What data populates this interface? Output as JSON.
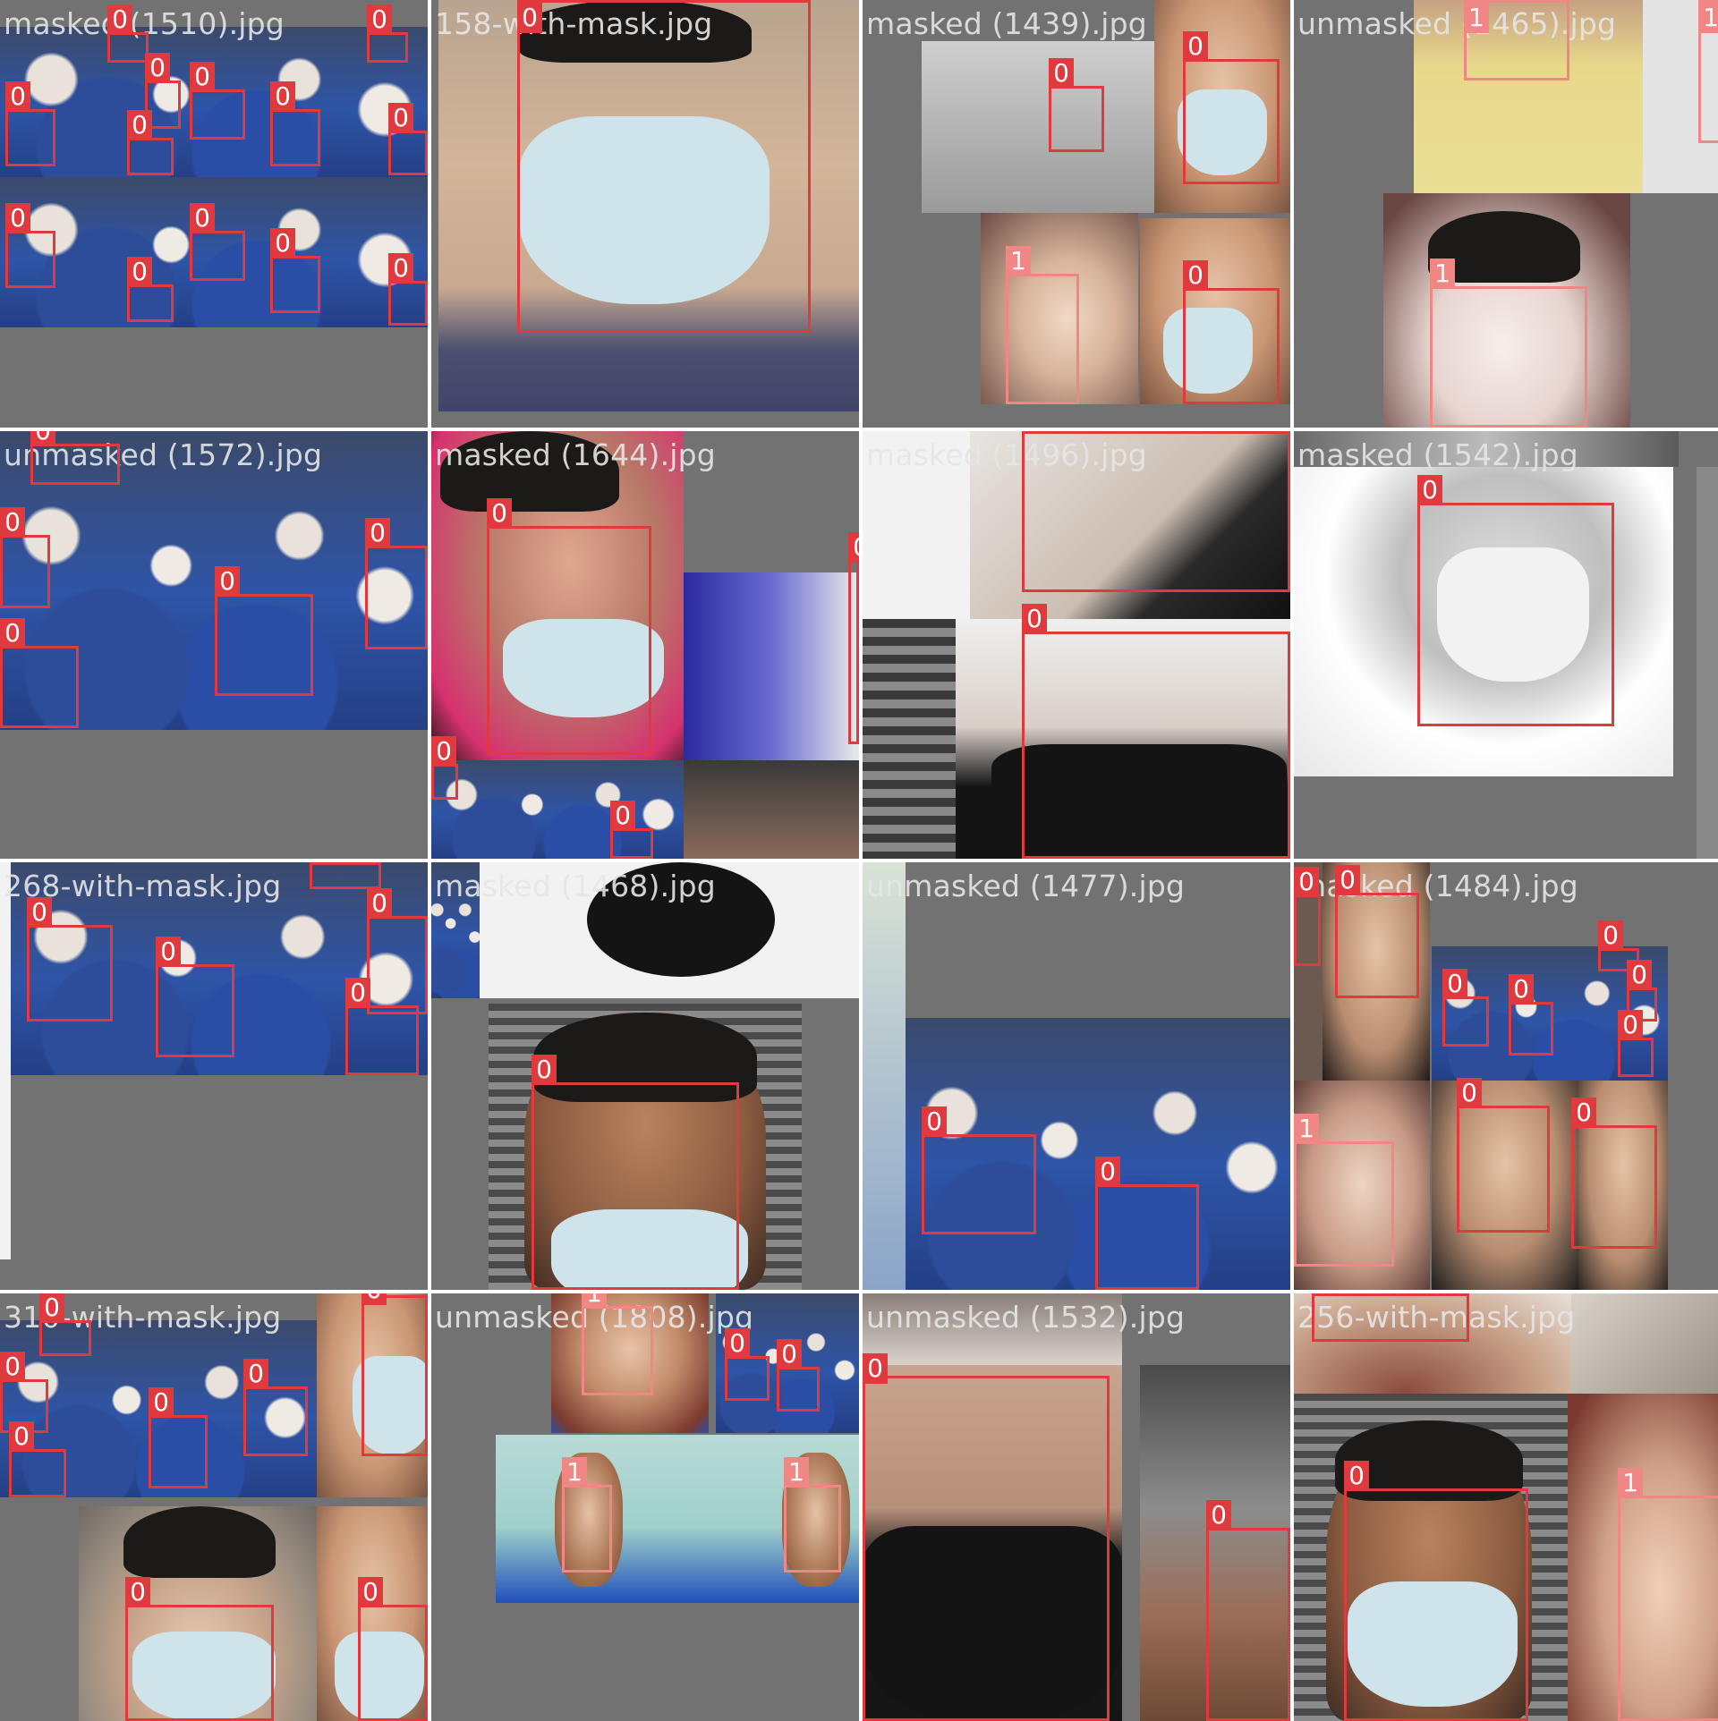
{
  "tiles": [
    {
      "title": "masked (1510).jpg"
    },
    {
      "title": "158-with-mask.jpg"
    },
    {
      "title": "masked (1439).jpg"
    },
    {
      "title": "unmasked (1465).jpg"
    },
    {
      "title": "unmasked (1572).jpg"
    },
    {
      "title": "masked (1644).jpg"
    },
    {
      "title": "masked (1496).jpg"
    },
    {
      "title": "masked (1542).jpg"
    },
    {
      "title": "268-with-mask.jpg"
    },
    {
      "title": "masked (1468).jpg"
    },
    {
      "title": "unmasked (1477).jpg"
    },
    {
      "title": "masked (1484).jpg"
    },
    {
      "title": "310-with-mask.jpg"
    },
    {
      "title": "unmasked (1808).jpg"
    },
    {
      "title": "unmasked (1532).jpg"
    },
    {
      "title": "256-with-mask.jpg"
    }
  ],
  "class_labels": {
    "masked": "0",
    "unmasked": "1"
  },
  "colors": {
    "class_0": "#e0393e",
    "class_1": "#f08784",
    "letterbox": "#727272"
  }
}
